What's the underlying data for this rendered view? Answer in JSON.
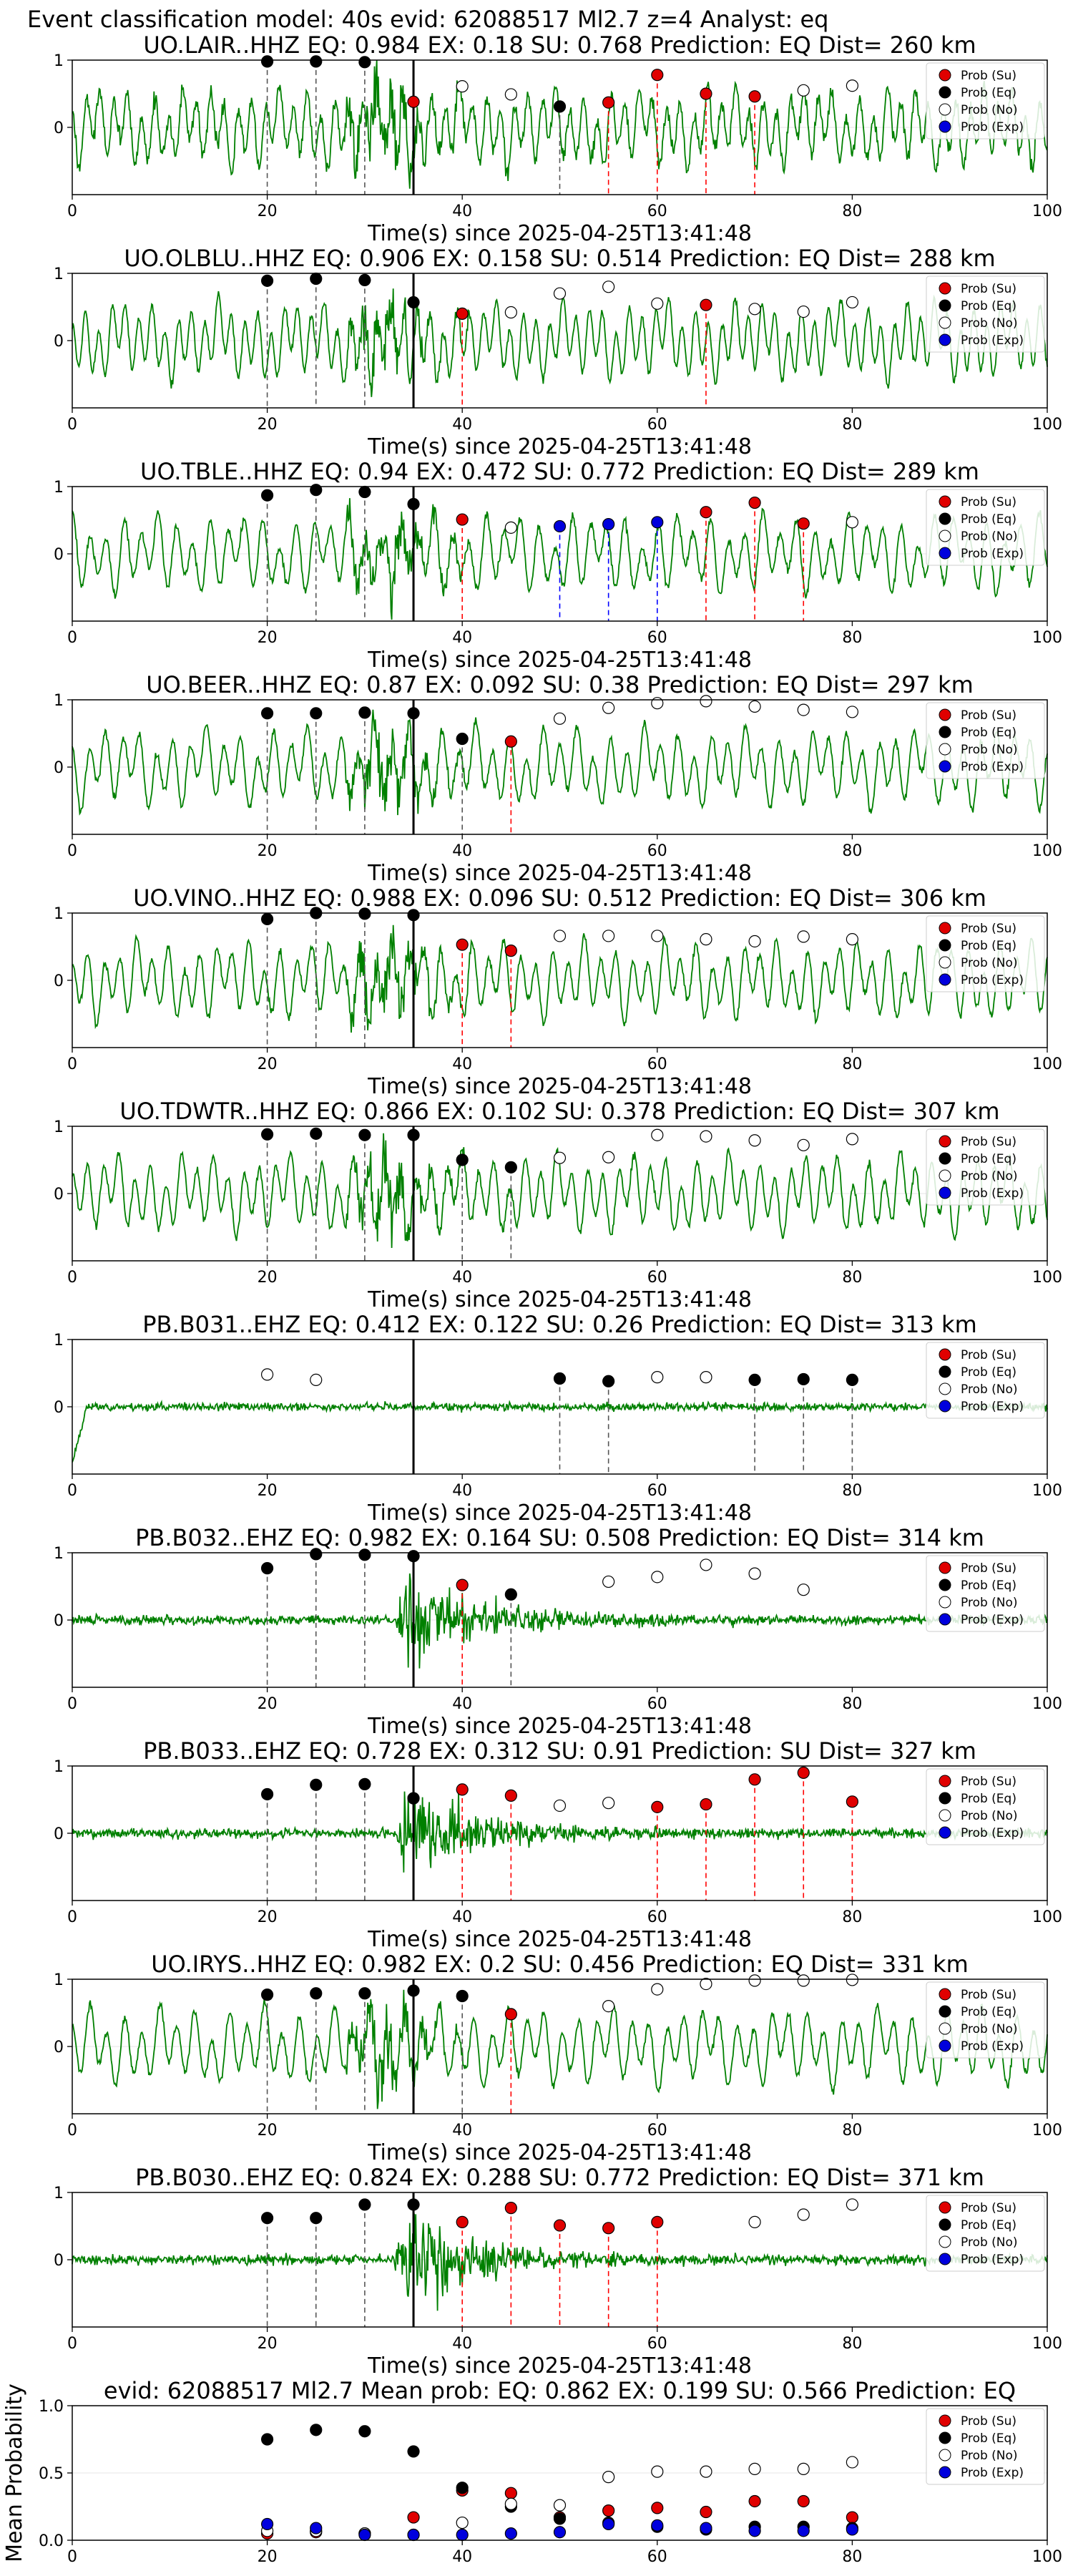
{
  "suptitle": "Event classification model: 40s evid: 62088517 Ml2.7 z=4 Analyst: eq",
  "colors": {
    "waveform": "#008000",
    "su": "#e00000",
    "eq": "#000000",
    "exp": "#0000dd",
    "eq_line": "#555555",
    "su_line": "#ff0000",
    "exp_line": "#0000ff",
    "p_line": "#000000"
  },
  "legend": {
    "position": "top-right",
    "entries": [
      "Prob (Su)",
      "Prob (Eq)",
      "Prob (No)",
      "Prob (Exp)"
    ]
  },
  "chart_data": [
    {
      "type": "line",
      "title": "UO.LAIR..HHZ   EQ: 0.984  EX: 0.18  SU: 0.768   Prediction: EQ    Dist= 260 km",
      "xlabel": "Time(s) since 2025-04-25T13:41:48",
      "xlim": [
        0,
        100
      ],
      "ylim": [
        -1,
        1
      ],
      "xticks": [
        0,
        20,
        40,
        60,
        80,
        100
      ],
      "yticks": [
        0,
        1
      ],
      "p_arrival": 35,
      "signal": "noisy",
      "legend_entries": 4,
      "seed": 3,
      "points": [
        {
          "t": 20,
          "c": "eq",
          "p": 0.98
        },
        {
          "t": 25,
          "c": "eq",
          "p": 0.98
        },
        {
          "t": 30,
          "c": "eq",
          "p": 0.97
        },
        {
          "t": 35,
          "c": "su",
          "p": 0.38
        },
        {
          "t": 40,
          "c": "no",
          "p": 0.61
        },
        {
          "t": 45,
          "c": "no",
          "p": 0.49
        },
        {
          "t": 50,
          "c": "eq",
          "p": 0.31
        },
        {
          "t": 55,
          "c": "su",
          "p": 0.37
        },
        {
          "t": 60,
          "c": "su",
          "p": 0.78
        },
        {
          "t": 65,
          "c": "su",
          "p": 0.5
        },
        {
          "t": 70,
          "c": "su",
          "p": 0.46
        },
        {
          "t": 75,
          "c": "no",
          "p": 0.55
        },
        {
          "t": 80,
          "c": "no",
          "p": 0.62
        }
      ]
    },
    {
      "type": "line",
      "title": "UO.OLBLU..HHZ   EQ: 0.906  EX: 0.158  SU: 0.514   Prediction: EQ    Dist= 288 km",
      "xlabel": "Time(s) since 2025-04-25T13:41:48",
      "xlim": [
        0,
        100
      ],
      "ylim": [
        -1,
        1
      ],
      "xticks": [
        0,
        20,
        40,
        60,
        80,
        100
      ],
      "yticks": [
        0,
        1
      ],
      "p_arrival": 35,
      "signal": "oscillating",
      "legend_entries": 4,
      "seed": 7,
      "points": [
        {
          "t": 20,
          "c": "eq",
          "p": 0.89
        },
        {
          "t": 25,
          "c": "eq",
          "p": 0.92
        },
        {
          "t": 30,
          "c": "eq",
          "p": 0.9
        },
        {
          "t": 35,
          "c": "eq",
          "p": 0.57
        },
        {
          "t": 40,
          "c": "su",
          "p": 0.4
        },
        {
          "t": 45,
          "c": "no",
          "p": 0.42
        },
        {
          "t": 50,
          "c": "no",
          "p": 0.7
        },
        {
          "t": 55,
          "c": "no",
          "p": 0.8
        },
        {
          "t": 60,
          "c": "no",
          "p": 0.55
        },
        {
          "t": 65,
          "c": "su",
          "p": 0.53
        },
        {
          "t": 70,
          "c": "no",
          "p": 0.47
        },
        {
          "t": 75,
          "c": "no",
          "p": 0.43
        },
        {
          "t": 80,
          "c": "no",
          "p": 0.57
        }
      ]
    },
    {
      "type": "line",
      "title": "UO.TBLE..HHZ   EQ: 0.94  EX: 0.472  SU: 0.772   Prediction: EQ    Dist= 289 km",
      "xlabel": "Time(s) since 2025-04-25T13:41:48",
      "xlim": [
        0,
        100
      ],
      "ylim": [
        -1,
        1
      ],
      "xticks": [
        0,
        20,
        40,
        60,
        80,
        100
      ],
      "yticks": [
        0,
        1
      ],
      "p_arrival": 35,
      "signal": "oscillating",
      "legend_entries": 4,
      "seed": 11,
      "points": [
        {
          "t": 20,
          "c": "eq",
          "p": 0.87
        },
        {
          "t": 25,
          "c": "eq",
          "p": 0.95
        },
        {
          "t": 30,
          "c": "eq",
          "p": 0.92
        },
        {
          "t": 35,
          "c": "eq",
          "p": 0.74
        },
        {
          "t": 40,
          "c": "su",
          "p": 0.51
        },
        {
          "t": 45,
          "c": "no",
          "p": 0.39
        },
        {
          "t": 50,
          "c": "exp",
          "p": 0.41
        },
        {
          "t": 55,
          "c": "exp",
          "p": 0.44
        },
        {
          "t": 60,
          "c": "exp",
          "p": 0.47
        },
        {
          "t": 65,
          "c": "su",
          "p": 0.62
        },
        {
          "t": 70,
          "c": "su",
          "p": 0.76
        },
        {
          "t": 75,
          "c": "su",
          "p": 0.45
        },
        {
          "t": 80,
          "c": "no",
          "p": 0.47
        }
      ]
    },
    {
      "type": "line",
      "title": "UO.BEER..HHZ   EQ: 0.87  EX: 0.092  SU: 0.38   Prediction: EQ    Dist= 297 km",
      "xlabel": "Time(s) since 2025-04-25T13:41:48",
      "xlim": [
        0,
        100
      ],
      "ylim": [
        -1,
        1
      ],
      "xticks": [
        0,
        20,
        40,
        60,
        80,
        100
      ],
      "yticks": [
        0,
        1
      ],
      "p_arrival": 35,
      "signal": "oscillating",
      "legend_entries": 4,
      "seed": 13,
      "points": [
        {
          "t": 20,
          "c": "eq",
          "p": 0.8
        },
        {
          "t": 25,
          "c": "eq",
          "p": 0.8
        },
        {
          "t": 30,
          "c": "eq",
          "p": 0.81
        },
        {
          "t": 35,
          "c": "eq",
          "p": 0.8
        },
        {
          "t": 40,
          "c": "eq",
          "p": 0.42
        },
        {
          "t": 45,
          "c": "su",
          "p": 0.38
        },
        {
          "t": 50,
          "c": "no",
          "p": 0.72
        },
        {
          "t": 55,
          "c": "no",
          "p": 0.88
        },
        {
          "t": 60,
          "c": "no",
          "p": 0.95
        },
        {
          "t": 65,
          "c": "no",
          "p": 0.98
        },
        {
          "t": 70,
          "c": "no",
          "p": 0.9
        },
        {
          "t": 75,
          "c": "no",
          "p": 0.85
        },
        {
          "t": 80,
          "c": "no",
          "p": 0.82
        }
      ]
    },
    {
      "type": "line",
      "title": "UO.VINO..HHZ   EQ: 0.988  EX: 0.096  SU: 0.512   Prediction: EQ    Dist= 306 km",
      "xlabel": "Time(s) since 2025-04-25T13:41:48",
      "xlim": [
        0,
        100
      ],
      "ylim": [
        -1,
        1
      ],
      "xticks": [
        0,
        20,
        40,
        60,
        80,
        100
      ],
      "yticks": [
        0,
        1
      ],
      "p_arrival": 35,
      "signal": "oscillating",
      "legend_entries": 4,
      "seed": 17,
      "points": [
        {
          "t": 20,
          "c": "eq",
          "p": 0.91
        },
        {
          "t": 25,
          "c": "eq",
          "p": 1.0
        },
        {
          "t": 30,
          "c": "eq",
          "p": 0.99
        },
        {
          "t": 35,
          "c": "eq",
          "p": 0.97
        },
        {
          "t": 40,
          "c": "su",
          "p": 0.53
        },
        {
          "t": 45,
          "c": "su",
          "p": 0.44
        },
        {
          "t": 50,
          "c": "no",
          "p": 0.66
        },
        {
          "t": 55,
          "c": "no",
          "p": 0.66
        },
        {
          "t": 60,
          "c": "no",
          "p": 0.66
        },
        {
          "t": 65,
          "c": "no",
          "p": 0.61
        },
        {
          "t": 70,
          "c": "no",
          "p": 0.58
        },
        {
          "t": 75,
          "c": "no",
          "p": 0.65
        },
        {
          "t": 80,
          "c": "no",
          "p": 0.61
        }
      ]
    },
    {
      "type": "line",
      "title": "UO.TDWTR..HHZ   EQ: 0.866  EX: 0.102  SU: 0.378   Prediction: EQ    Dist= 307 km",
      "xlabel": "Time(s) since 2025-04-25T13:41:48",
      "xlim": [
        0,
        100
      ],
      "ylim": [
        -1,
        1
      ],
      "xticks": [
        0,
        20,
        40,
        60,
        80,
        100
      ],
      "yticks": [
        0,
        1
      ],
      "p_arrival": 35,
      "signal": "oscillating",
      "legend_entries": 4,
      "seed": 19,
      "points": [
        {
          "t": 20,
          "c": "eq",
          "p": 0.88
        },
        {
          "t": 25,
          "c": "eq",
          "p": 0.89
        },
        {
          "t": 30,
          "c": "eq",
          "p": 0.87
        },
        {
          "t": 35,
          "c": "eq",
          "p": 0.87
        },
        {
          "t": 40,
          "c": "eq",
          "p": 0.5
        },
        {
          "t": 45,
          "c": "eq",
          "p": 0.39
        },
        {
          "t": 50,
          "c": "no",
          "p": 0.53
        },
        {
          "t": 55,
          "c": "no",
          "p": 0.54
        },
        {
          "t": 60,
          "c": "no",
          "p": 0.87
        },
        {
          "t": 65,
          "c": "no",
          "p": 0.85
        },
        {
          "t": 70,
          "c": "no",
          "p": 0.79
        },
        {
          "t": 75,
          "c": "no",
          "p": 0.72
        },
        {
          "t": 80,
          "c": "no",
          "p": 0.81
        }
      ]
    },
    {
      "type": "line",
      "title": "PB.B031..EHZ   EQ: 0.412  EX: 0.122  SU: 0.26   Prediction: EQ    Dist= 313 km",
      "xlabel": "Time(s) since 2025-04-25T13:41:48",
      "xlim": [
        0,
        100
      ],
      "ylim": [
        -1,
        1
      ],
      "xticks": [
        0,
        20,
        40,
        60,
        80,
        100
      ],
      "yticks": [
        0,
        1
      ],
      "p_arrival": 35,
      "signal": "quiet",
      "legend_entries": 4,
      "seed": 23,
      "points": [
        {
          "t": 20,
          "c": "no",
          "p": 0.48
        },
        {
          "t": 25,
          "c": "no",
          "p": 0.4
        },
        {
          "t": 50,
          "c": "eq",
          "p": 0.42
        },
        {
          "t": 55,
          "c": "eq",
          "p": 0.38
        },
        {
          "t": 60,
          "c": "no",
          "p": 0.44
        },
        {
          "t": 65,
          "c": "no",
          "p": 0.44
        },
        {
          "t": 70,
          "c": "eq",
          "p": 0.4
        },
        {
          "t": 75,
          "c": "eq",
          "p": 0.41
        },
        {
          "t": 80,
          "c": "eq",
          "p": 0.4
        }
      ]
    },
    {
      "type": "line",
      "title": "PB.B032..EHZ   EQ: 0.982  EX: 0.164  SU: 0.508   Prediction: EQ    Dist= 314 km",
      "xlabel": "Time(s) since 2025-04-25T13:41:48",
      "xlim": [
        0,
        100
      ],
      "ylim": [
        -1,
        1
      ],
      "xticks": [
        0,
        20,
        40,
        60,
        80,
        100
      ],
      "yticks": [
        0,
        1
      ],
      "p_arrival": 35,
      "signal": "burst",
      "legend_entries": 4,
      "seed": 29,
      "points": [
        {
          "t": 20,
          "c": "eq",
          "p": 0.77
        },
        {
          "t": 25,
          "c": "eq",
          "p": 0.98
        },
        {
          "t": 30,
          "c": "eq",
          "p": 0.97
        },
        {
          "t": 35,
          "c": "eq",
          "p": 0.95
        },
        {
          "t": 40,
          "c": "su",
          "p": 0.52
        },
        {
          "t": 45,
          "c": "eq",
          "p": 0.38
        },
        {
          "t": 55,
          "c": "no",
          "p": 0.57
        },
        {
          "t": 60,
          "c": "no",
          "p": 0.64
        },
        {
          "t": 65,
          "c": "no",
          "p": 0.82
        },
        {
          "t": 70,
          "c": "no",
          "p": 0.69
        },
        {
          "t": 75,
          "c": "no",
          "p": 0.45
        }
      ]
    },
    {
      "type": "line",
      "title": "PB.B033..EHZ   EQ: 0.728  EX: 0.312  SU: 0.91   Prediction: SU    Dist= 327 km",
      "xlabel": "Time(s) since 2025-04-25T13:41:48",
      "xlim": [
        0,
        100
      ],
      "ylim": [
        -1,
        1
      ],
      "xticks": [
        0,
        20,
        40,
        60,
        80,
        100
      ],
      "yticks": [
        0,
        1
      ],
      "p_arrival": 35,
      "signal": "burst",
      "legend_entries": 4,
      "seed": 31,
      "points": [
        {
          "t": 20,
          "c": "eq",
          "p": 0.58
        },
        {
          "t": 25,
          "c": "eq",
          "p": 0.72
        },
        {
          "t": 30,
          "c": "eq",
          "p": 0.73
        },
        {
          "t": 35,
          "c": "eq",
          "p": 0.52
        },
        {
          "t": 40,
          "c": "su",
          "p": 0.65
        },
        {
          "t": 45,
          "c": "su",
          "p": 0.56
        },
        {
          "t": 50,
          "c": "no",
          "p": 0.41
        },
        {
          "t": 55,
          "c": "no",
          "p": 0.45
        },
        {
          "t": 60,
          "c": "su",
          "p": 0.39
        },
        {
          "t": 65,
          "c": "su",
          "p": 0.43
        },
        {
          "t": 70,
          "c": "su",
          "p": 0.8
        },
        {
          "t": 75,
          "c": "su",
          "p": 0.9
        },
        {
          "t": 80,
          "c": "su",
          "p": 0.47
        }
      ]
    },
    {
      "type": "line",
      "title": "UO.IRYS..HHZ   EQ: 0.982  EX: 0.2  SU: 0.456   Prediction: EQ    Dist= 331 km",
      "xlabel": "Time(s) since 2025-04-25T13:41:48",
      "xlim": [
        0,
        100
      ],
      "ylim": [
        -1,
        1
      ],
      "xticks": [
        0,
        20,
        40,
        60,
        80,
        100
      ],
      "yticks": [
        0,
        1
      ],
      "p_arrival": 35,
      "signal": "oscillating",
      "legend_entries": 4,
      "seed": 37,
      "points": [
        {
          "t": 20,
          "c": "eq",
          "p": 0.77
        },
        {
          "t": 25,
          "c": "eq",
          "p": 0.79
        },
        {
          "t": 30,
          "c": "eq",
          "p": 0.79
        },
        {
          "t": 35,
          "c": "eq",
          "p": 0.83
        },
        {
          "t": 40,
          "c": "eq",
          "p": 0.75
        },
        {
          "t": 45,
          "c": "su",
          "p": 0.48
        },
        {
          "t": 55,
          "c": "no",
          "p": 0.6
        },
        {
          "t": 60,
          "c": "no",
          "p": 0.85
        },
        {
          "t": 65,
          "c": "no",
          "p": 0.93
        },
        {
          "t": 70,
          "c": "no",
          "p": 0.98
        },
        {
          "t": 75,
          "c": "no",
          "p": 0.98
        },
        {
          "t": 80,
          "c": "no",
          "p": 0.99
        }
      ]
    },
    {
      "type": "line",
      "title": "PB.B030..EHZ   EQ: 0.824  EX: 0.288  SU: 0.772   Prediction: EQ    Dist= 371 km",
      "xlabel": "Time(s) since 2025-04-25T13:41:48",
      "xlim": [
        0,
        100
      ],
      "ylim": [
        -1,
        1
      ],
      "xticks": [
        0,
        20,
        40,
        60,
        80,
        100
      ],
      "yticks": [
        0,
        1
      ],
      "p_arrival": 35,
      "signal": "burst",
      "legend_entries": 4,
      "seed": 41,
      "points": [
        {
          "t": 20,
          "c": "eq",
          "p": 0.62
        },
        {
          "t": 25,
          "c": "eq",
          "p": 0.62
        },
        {
          "t": 30,
          "c": "eq",
          "p": 0.82
        },
        {
          "t": 35,
          "c": "eq",
          "p": 0.82
        },
        {
          "t": 40,
          "c": "su",
          "p": 0.56
        },
        {
          "t": 45,
          "c": "su",
          "p": 0.77
        },
        {
          "t": 50,
          "c": "su",
          "p": 0.51
        },
        {
          "t": 55,
          "c": "su",
          "p": 0.47
        },
        {
          "t": 60,
          "c": "su",
          "p": 0.56
        },
        {
          "t": 70,
          "c": "no",
          "p": 0.56
        },
        {
          "t": 75,
          "c": "no",
          "p": 0.67
        },
        {
          "t": 80,
          "c": "no",
          "p": 0.82
        }
      ]
    },
    {
      "type": "scatter",
      "title": "evid: 62088517  Ml2.7    Mean prob:   EQ: 0.862  EX: 0.199  SU: 0.566   Prediction: EQ",
      "ylabel": "Mean Probability",
      "xlim": [
        0,
        100
      ],
      "ylim": [
        0,
        1
      ],
      "xticks": [
        0,
        20,
        40,
        60,
        80,
        100
      ],
      "yticks": [
        0,
        0.5,
        1
      ],
      "ytick_labels": [
        "0.0",
        "0.5",
        "1.0"
      ],
      "x": [
        20,
        25,
        30,
        35,
        40,
        45,
        50,
        55,
        60,
        65,
        70,
        75,
        80
      ],
      "series": [
        {
          "name": "Prob (Su)",
          "key": "su",
          "values": [
            0.05,
            0.06,
            0.05,
            0.17,
            0.37,
            0.35,
            0.17,
            0.22,
            0.24,
            0.21,
            0.29,
            0.29,
            0.17
          ]
        },
        {
          "name": "Prob (Eq)",
          "key": "eq",
          "values": [
            0.75,
            0.82,
            0.81,
            0.66,
            0.39,
            0.25,
            0.16,
            0.13,
            0.1,
            0.08,
            0.1,
            0.1,
            0.09
          ]
        },
        {
          "name": "Prob (No)",
          "key": "no",
          "values": [
            0.07,
            0.07,
            0.05,
            0.04,
            0.13,
            0.27,
            0.26,
            0.47,
            0.51,
            0.51,
            0.53,
            0.53,
            0.58
          ]
        },
        {
          "name": "Prob (Exp)",
          "key": "exp",
          "values": [
            0.12,
            0.09,
            0.04,
            0.04,
            0.04,
            0.05,
            0.06,
            0.12,
            0.11,
            0.09,
            0.07,
            0.07,
            0.08
          ]
        }
      ]
    }
  ]
}
